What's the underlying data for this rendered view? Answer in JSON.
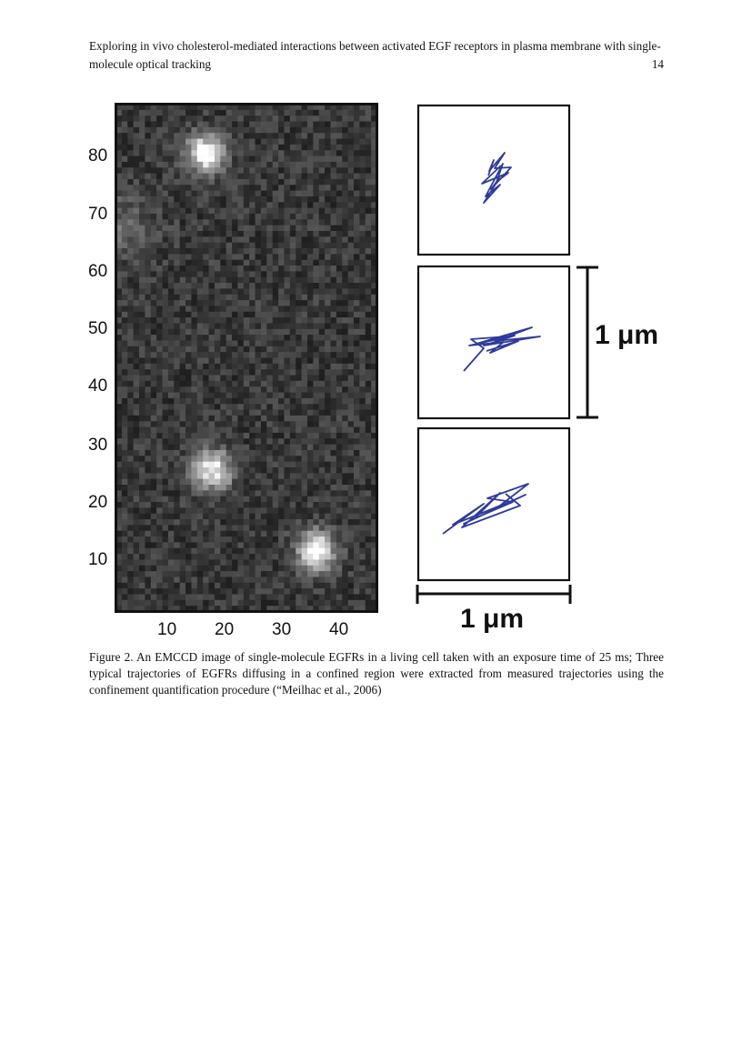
{
  "header": {
    "title": "Exploring in vivo cholesterol-mediated interactions between activated EGF receptors in plasma membrane with single-molecule optical tracking",
    "page_number": "14"
  },
  "figure": {
    "image": {
      "y_ticks": [
        "80",
        "70",
        "60",
        "50",
        "40",
        "30",
        "20",
        "10"
      ],
      "x_ticks": [
        "10",
        "20",
        "30",
        "40"
      ],
      "spots": [
        {
          "x": 16,
          "y": 80
        },
        {
          "x": 17,
          "y": 25
        },
        {
          "x": 35,
          "y": 11
        },
        {
          "x": 1,
          "y": 67
        }
      ]
    },
    "trajectories_color": "#2f3b9a",
    "scale_bar_vertical_label": "1 μm",
    "scale_bar_horizontal_label": "1 μm"
  },
  "caption": "Figure 2.  An EMCCD image of single-molecule EGFRs in a living cell taken with an exposure time of 25 ms; Three typical trajectories of EGFRs diffusing in a confined region were extracted from measured trajectories using the confinement quantification procedure (“Meilhac et al., 2006)"
}
